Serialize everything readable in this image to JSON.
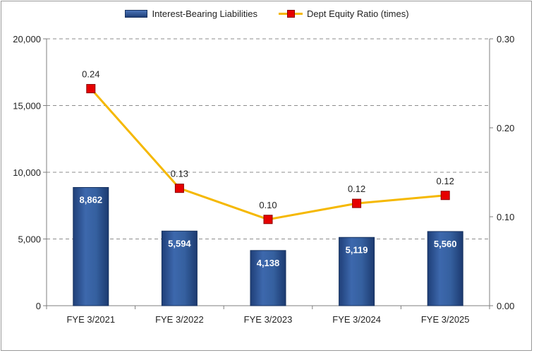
{
  "chart_data": {
    "type": "bar",
    "categories": [
      "FYE 3/2021",
      "FYE 3/2022",
      "FYE 3/2023",
      "FYE 3/2024",
      "FYE 3/2025"
    ],
    "series": [
      {
        "name": "Interest-Bearing Liabilities",
        "type": "bar",
        "axis": "left",
        "values": [
          8862,
          5594,
          4138,
          5119,
          5560
        ],
        "labels": [
          "8,862",
          "5,594",
          "4,138",
          "5,119",
          "5,560"
        ],
        "color": "#2b5494"
      },
      {
        "name": "Dept Equity Ratio (times)",
        "type": "line",
        "axis": "right",
        "values": [
          0.244,
          0.132,
          0.097,
          0.115,
          0.124
        ],
        "labels": [
          "0.24",
          "0.13",
          "0.10",
          "0.12",
          "0.12"
        ],
        "color": "#f5b800",
        "marker_color": "#e60000"
      }
    ],
    "y_left": {
      "lim": [
        0,
        20000
      ],
      "ticks": [
        "0",
        "5,000",
        "10,000",
        "15,000",
        "20,000"
      ]
    },
    "y_right": {
      "lim": [
        0,
        0.3
      ],
      "ticks": [
        "0.00",
        "0.10",
        "0.20",
        "0.30"
      ]
    },
    "grid": "dashed horizontal",
    "legend": "top-center"
  }
}
